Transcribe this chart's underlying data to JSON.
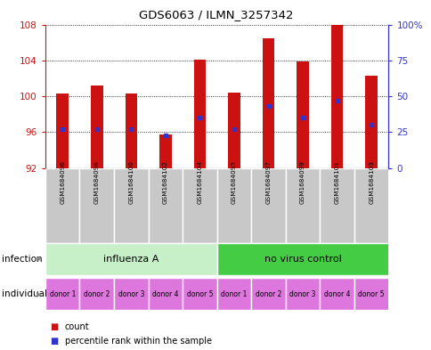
{
  "title": "GDS6063 / ILMN_3257342",
  "samples": [
    "GSM1684096",
    "GSM1684098",
    "GSM1684100",
    "GSM1684102",
    "GSM1684104",
    "GSM1684095",
    "GSM1684097",
    "GSM1684099",
    "GSM1684101",
    "GSM1684103"
  ],
  "counts": [
    100.3,
    101.2,
    100.3,
    95.7,
    104.1,
    100.4,
    106.5,
    103.9,
    108.1,
    102.3
  ],
  "percentiles": [
    27,
    27,
    27,
    23,
    35,
    27,
    43,
    35,
    47,
    30
  ],
  "ylim_left": [
    92,
    108
  ],
  "ylim_right": [
    0,
    100
  ],
  "yticks_left": [
    92,
    96,
    100,
    104,
    108
  ],
  "yticks_right": [
    0,
    25,
    50,
    75,
    100
  ],
  "bar_color": "#cc1111",
  "dot_color": "#3333cc",
  "baseline": 92,
  "infection_groups": [
    {
      "label": "influenza A",
      "start": 0,
      "end": 5,
      "color": "#c8f0c8"
    },
    {
      "label": "no virus control",
      "start": 5,
      "end": 10,
      "color": "#44cc44"
    }
  ],
  "individual_labels": [
    "donor 1",
    "donor 2",
    "donor 3",
    "donor 4",
    "donor 5",
    "donor 1",
    "donor 2",
    "donor 3",
    "donor 4",
    "donor 5"
  ],
  "individual_color": "#dd77dd",
  "sample_bg_color": "#c8c8c8",
  "bar_width": 0.35,
  "legend_count_color": "#cc1111",
  "legend_dot_color": "#3333cc"
}
